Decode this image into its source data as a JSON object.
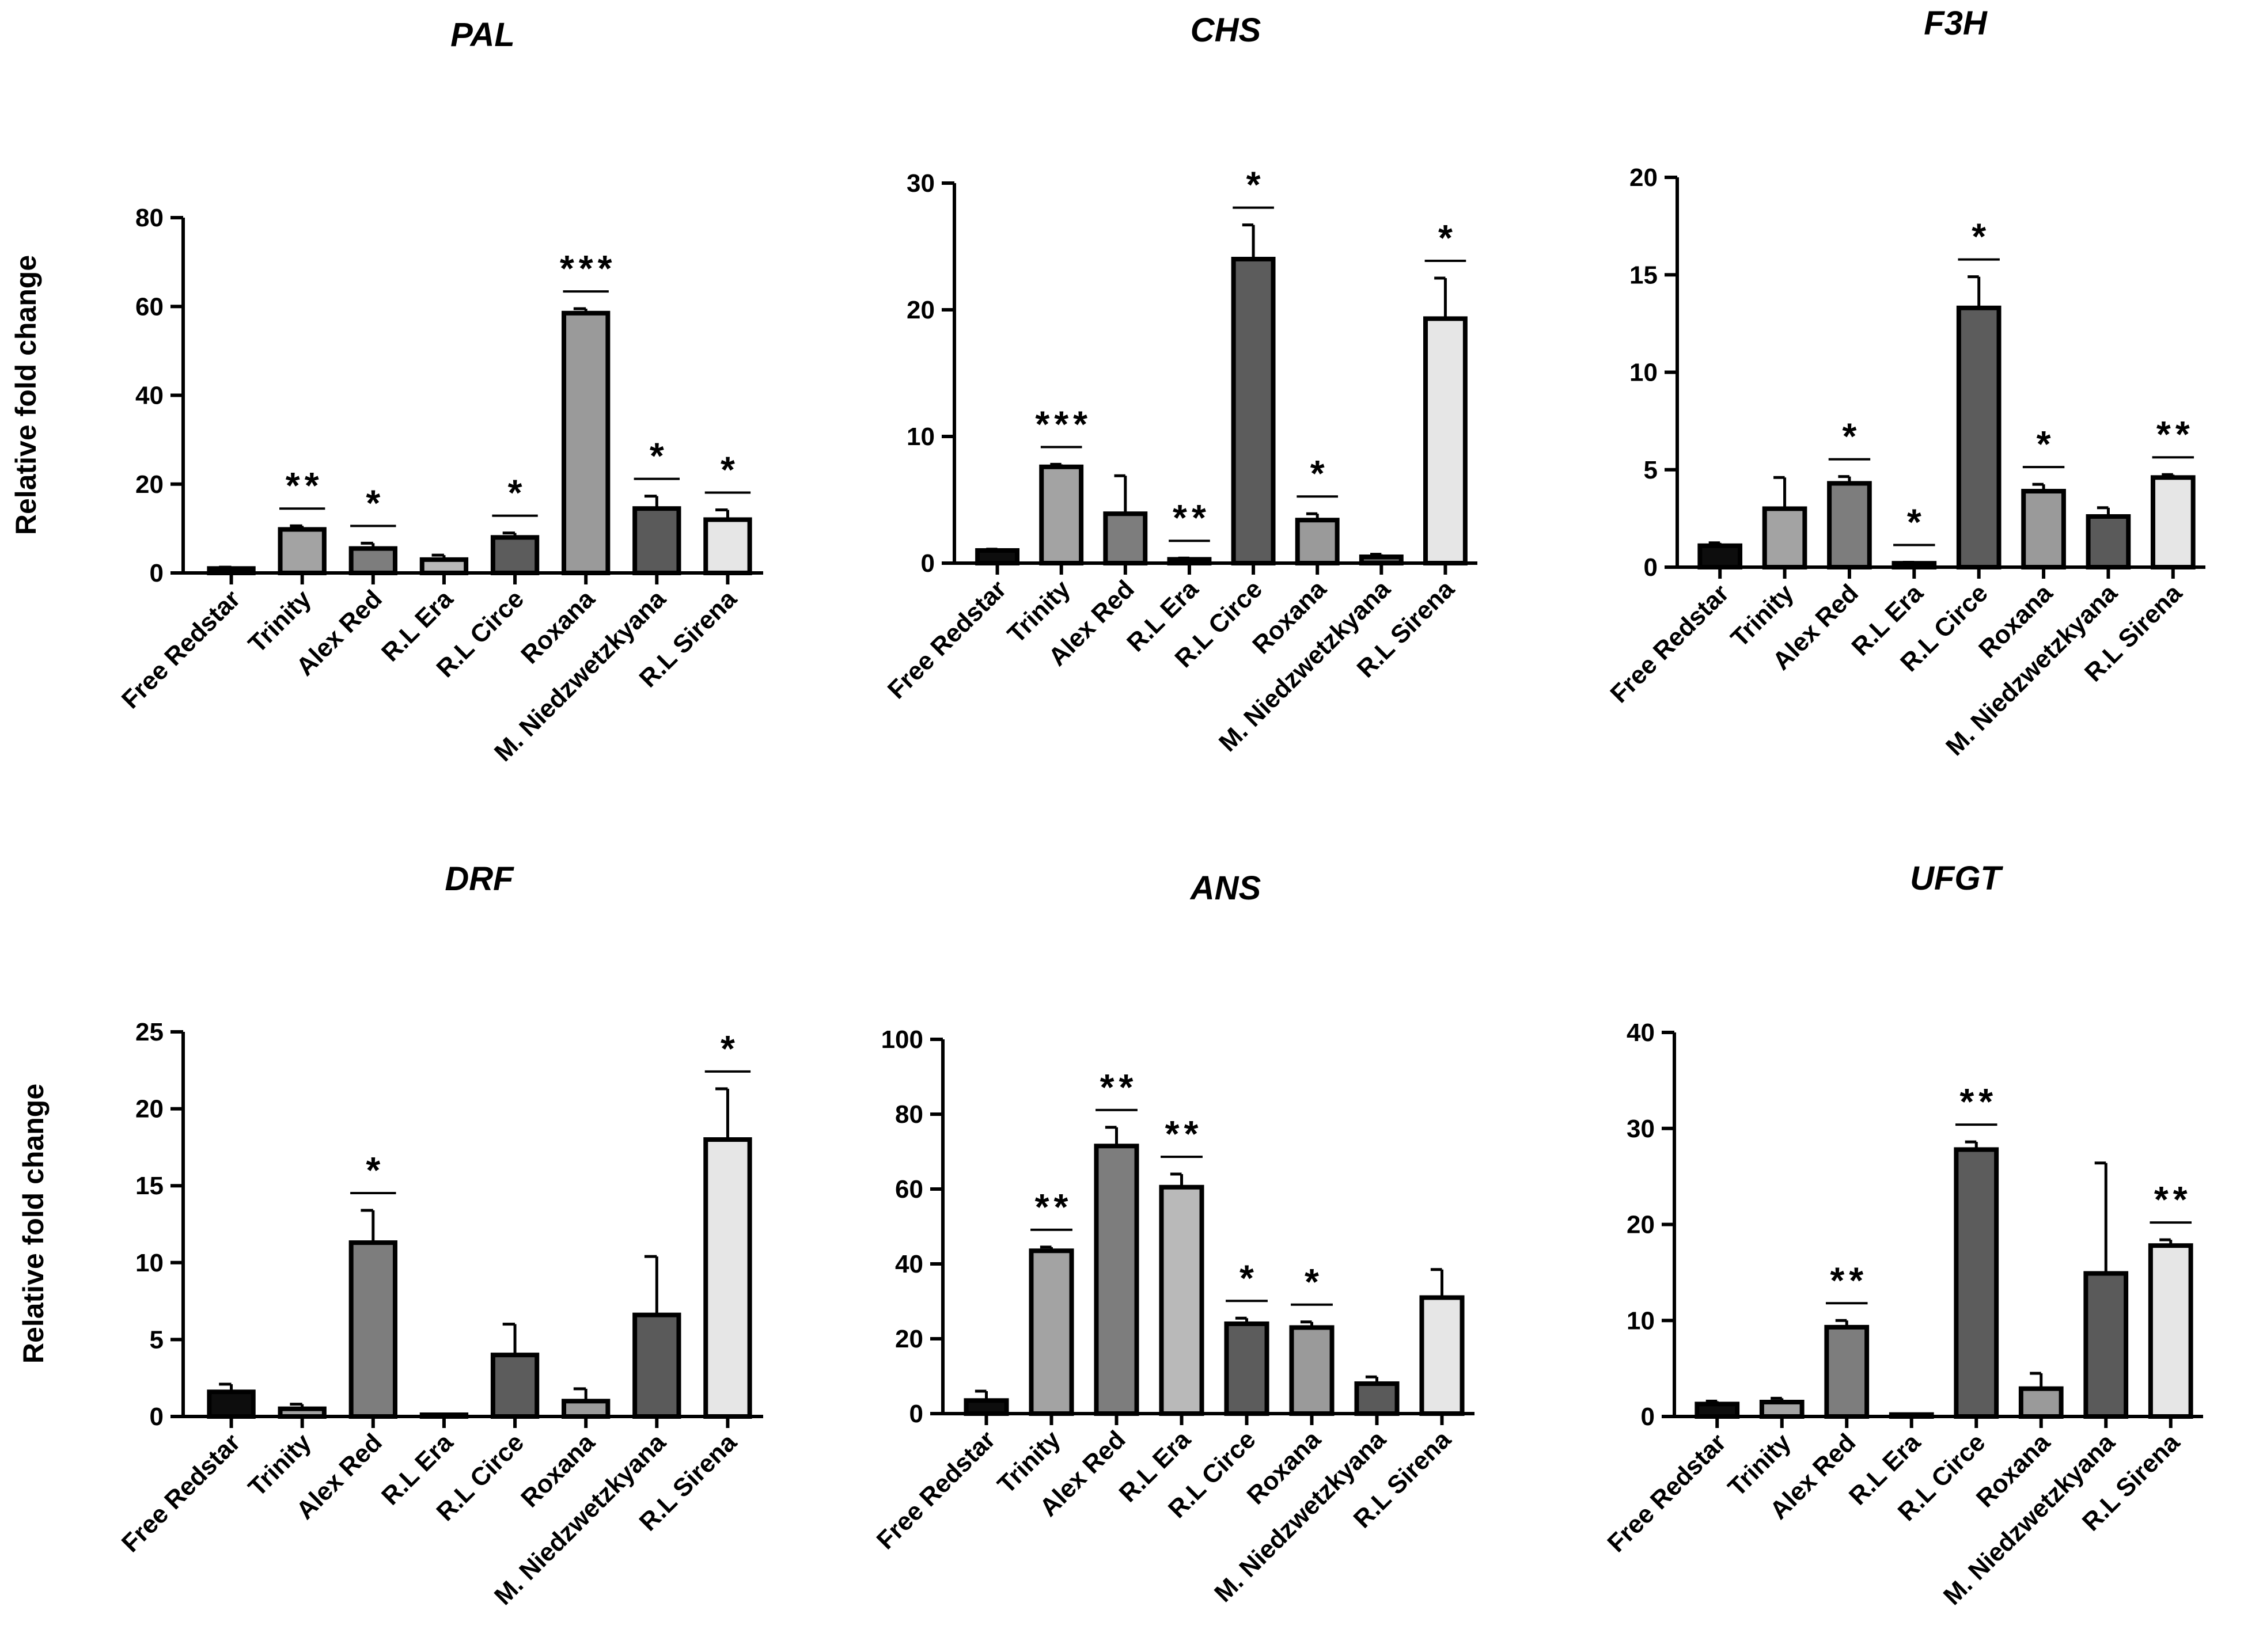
{
  "figure": {
    "colors": {
      "Free Redstar": "#0d0d0d",
      "Trinity": "#a3a3a3",
      "Alex Red": "#7d7d7d",
      "R.L Era": "#b9b9b9",
      "R.L Circe": "#5c5c5c",
      "Roxana": "#9a9a9a",
      "M. Niedzwetzkyana": "#5a5a5a",
      "R.L Sirena": "#e6e6e6"
    }
  },
  "chart_data": [
    {
      "type": "bar",
      "title": "PAL",
      "ylabel": "Relative fold change",
      "xlabel": "",
      "ylim": [
        0,
        80
      ],
      "yticks": [
        "0",
        "20",
        "40",
        "60",
        "80"
      ],
      "categories": [
        "Free Redstar",
        "Trinity",
        "Alex Red",
        "R.L Era",
        "R.L Circe",
        "Roxana",
        "M. Niedzwetzkyana",
        "R.L Sirena"
      ],
      "values": [
        1,
        9.8,
        5.5,
        3,
        8,
        58.5,
        14.5,
        12
      ],
      "errors": [
        0.3,
        0.8,
        1.2,
        1.0,
        1.0,
        1.0,
        2.8,
        2.2
      ],
      "significance": [
        "",
        "**",
        "*",
        "",
        "*",
        "***",
        "*",
        "*"
      ]
    },
    {
      "type": "bar",
      "title": "CHS",
      "ylabel": "",
      "xlabel": "",
      "ylim": [
        0,
        30
      ],
      "yticks": [
        "0",
        "10",
        "20",
        "30"
      ],
      "categories": [
        "Free Redstar",
        "Trinity",
        "Alex Red",
        "R.L Era",
        "R.L Circe",
        "Roxana",
        "M. Niedzwetzkyana",
        "R.L Sirena"
      ],
      "values": [
        1,
        7.6,
        3.9,
        0.3,
        24,
        3.4,
        0.5,
        19.3
      ],
      "errors": [
        0.1,
        0.2,
        3.0,
        0.1,
        2.7,
        0.5,
        0.2,
        3.2
      ],
      "significance": [
        "",
        "***",
        "",
        "**",
        "*",
        "*",
        "",
        "*"
      ]
    },
    {
      "type": "bar",
      "title": "F3H",
      "ylabel": "",
      "xlabel": "",
      "ylim": [
        0,
        20
      ],
      "yticks": [
        "0",
        "5",
        "10",
        "15",
        "20"
      ],
      "categories": [
        "Free Redstar",
        "Trinity",
        "Alex Red",
        "R.L Era",
        "R.L Circe",
        "Roxana",
        "M. Niedzwetzkyana",
        "R.L Sirena"
      ],
      "values": [
        1.1,
        3,
        4.3,
        0.2,
        13.3,
        3.9,
        2.6,
        4.6
      ],
      "errors": [
        0.15,
        1.6,
        0.35,
        0.05,
        1.6,
        0.35,
        0.45,
        0.15
      ],
      "significance": [
        "",
        "",
        "*",
        "*",
        "*",
        "*",
        "",
        "**"
      ]
    },
    {
      "type": "bar",
      "title": "DRF",
      "ylabel": "Relative fold change",
      "xlabel": "",
      "ylim": [
        0,
        25
      ],
      "yticks": [
        "0",
        "5",
        "10",
        "15",
        "20",
        "25"
      ],
      "categories": [
        "Free Redstar",
        "Trinity",
        "Alex Red",
        "R.L Era",
        "R.L Circe",
        "Roxana",
        "M. Niedzwetzkyana",
        "R.L Sirena"
      ],
      "values": [
        1.6,
        0.5,
        11.3,
        0.1,
        4,
        1,
        6.6,
        18
      ],
      "errors": [
        0.5,
        0.3,
        2.1,
        0.05,
        2.0,
        0.8,
        3.8,
        3.3
      ],
      "significance": [
        "",
        "",
        "*",
        "",
        "",
        "",
        "",
        "*"
      ]
    },
    {
      "type": "bar",
      "title": "ANS",
      "ylabel": "",
      "xlabel": "",
      "ylim": [
        0,
        100
      ],
      "yticks": [
        "0",
        "20",
        "40",
        "60",
        "80",
        "100"
      ],
      "categories": [
        "Free Redstar",
        "Trinity",
        "Alex Red",
        "R.L Era",
        "R.L Circe",
        "Roxana",
        "M. Niedzwetzkyana",
        "R.L Sirena"
      ],
      "values": [
        3.5,
        43.5,
        71.5,
        60.5,
        24,
        23,
        8,
        31
      ],
      "errors": [
        2.5,
        1.0,
        5.0,
        3.5,
        1.5,
        1.5,
        1.8,
        7.5
      ],
      "significance": [
        "",
        "**",
        "**",
        "**",
        "*",
        "*",
        "",
        ""
      ]
    },
    {
      "type": "bar",
      "title": "UFGT",
      "ylabel": "",
      "xlabel": "",
      "ylim": [
        0,
        40
      ],
      "yticks": [
        "0",
        "10",
        "20",
        "30",
        "40"
      ],
      "categories": [
        "Free Redstar",
        "Trinity",
        "Alex Red",
        "R.L Era",
        "R.L Circe",
        "Roxana",
        "M. Niedzwetzkyana",
        "R.L Sirena"
      ],
      "values": [
        1.3,
        1.5,
        9.3,
        0.2,
        27.8,
        2.9,
        14.9,
        17.8
      ],
      "errors": [
        0.3,
        0.4,
        0.7,
        0.05,
        0.8,
        1.6,
        11.5,
        0.6
      ],
      "significance": [
        "",
        "",
        "**",
        "",
        "**",
        "",
        "",
        "**"
      ]
    }
  ]
}
